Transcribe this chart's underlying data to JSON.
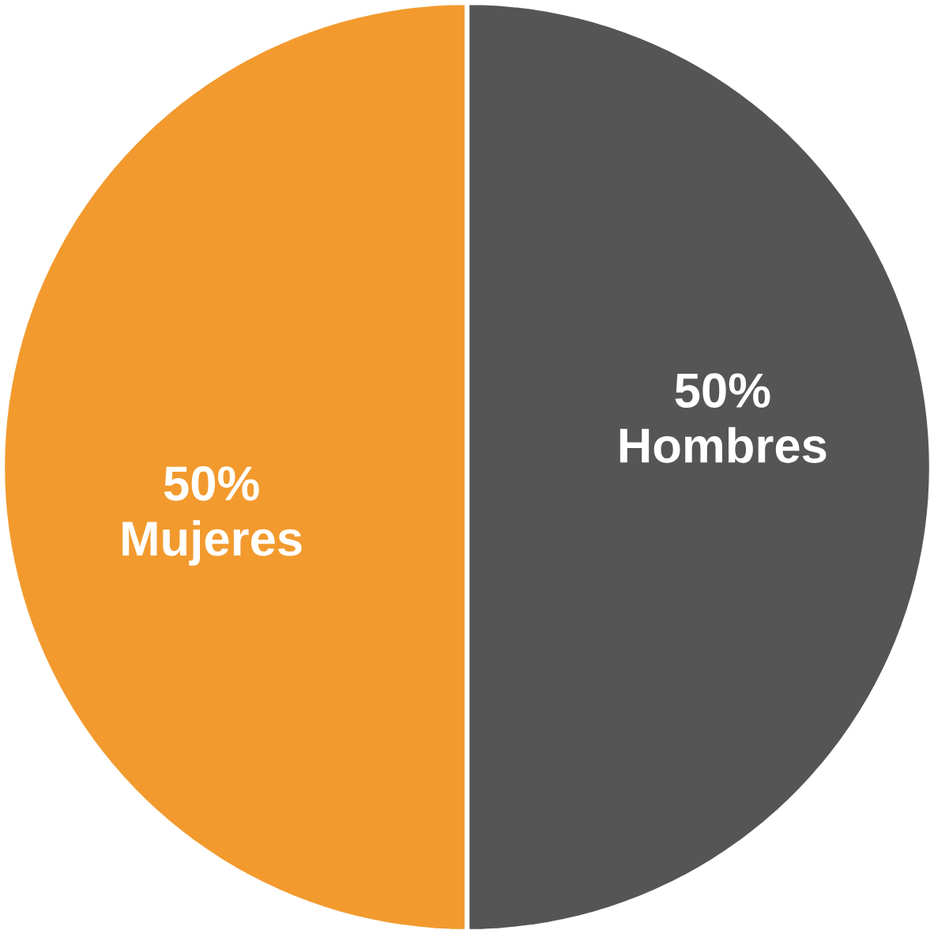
{
  "chart_data": {
    "type": "pie",
    "categories": [
      "Hombres",
      "Mujeres"
    ],
    "values": [
      50,
      50
    ],
    "value_labels": [
      "50%",
      "50%"
    ],
    "colors": [
      "#555555",
      "#f29a2e"
    ]
  }
}
